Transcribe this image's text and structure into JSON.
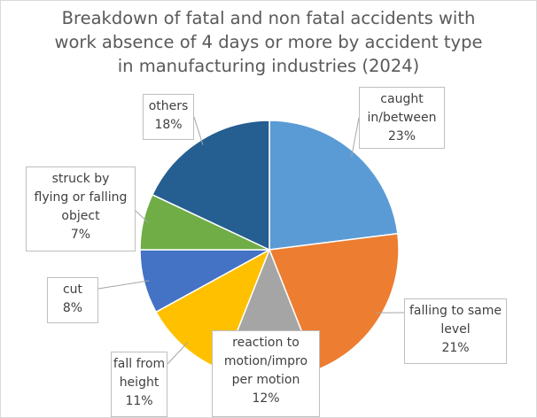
{
  "chart_data": {
    "type": "pie",
    "title": "Breakdown of fatal and non fatal accidents with work absence of 4 days or more by accident type in manufacturing industries (2024)",
    "title_lines": [
      "Breakdown of fatal and non fatal accidents with",
      "work absence of 4 days or more by accident type",
      "in manufacturing industries (2024)"
    ],
    "slices": [
      {
        "label_lines": [
          "caught",
          "in/between"
        ],
        "value": 23,
        "value_label": "23%",
        "color": "#5b9bd5"
      },
      {
        "label_lines": [
          "falling to same",
          "level"
        ],
        "value": 21,
        "value_label": "21%",
        "color": "#ed7d31"
      },
      {
        "label_lines": [
          "reaction to",
          "motion/impro",
          "per motion"
        ],
        "value": 12,
        "value_label": "12%",
        "color": "#a5a5a5"
      },
      {
        "label_lines": [
          "fall from",
          "height"
        ],
        "value": 11,
        "value_label": "11%",
        "color": "#ffc000"
      },
      {
        "label_lines": [
          "cut"
        ],
        "value": 8,
        "value_label": "8%",
        "color": "#4472c4"
      },
      {
        "label_lines": [
          "struck by",
          "flying or falling",
          "object"
        ],
        "value": 7,
        "value_label": "7%",
        "color": "#70ad47"
      },
      {
        "label_lines": [
          "others"
        ],
        "value": 18,
        "value_label": "18%",
        "color": "#255e91"
      }
    ],
    "legend": "none",
    "label_style": "callout"
  }
}
